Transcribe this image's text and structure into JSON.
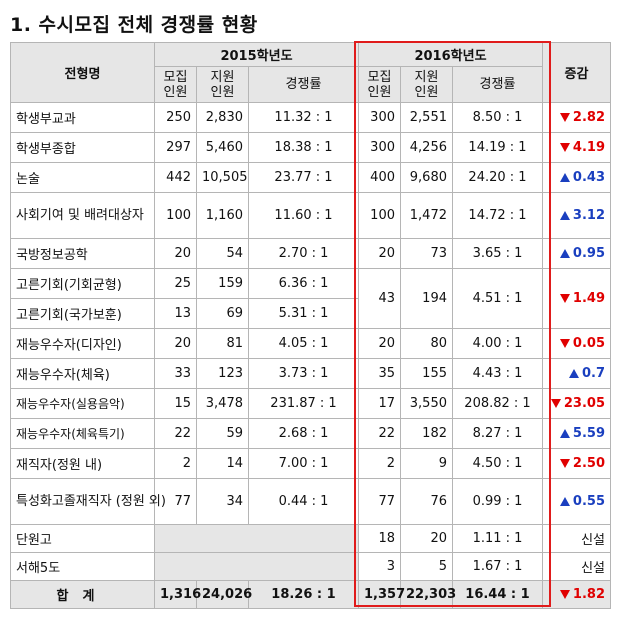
{
  "title": "1. 수시모집 전체 경쟁률 현황",
  "header": {
    "type": "전형명",
    "year2015": "2015학년도",
    "year2016": "2016학년도",
    "recruit": "모집",
    "recruit2": "인원",
    "apply": "지원",
    "apply2": "인원",
    "rate": "경쟁률",
    "change": "증감"
  },
  "rows": [
    {
      "name": "학생부교과",
      "r15": "250",
      "a15": "2,830",
      "c15": "11.32 : 1",
      "r16": "300",
      "a16": "2,551",
      "c16": "8.50 : 1",
      "chg": "2.82",
      "dir": "down"
    },
    {
      "name": "학생부종합",
      "r15": "297",
      "a15": "5,460",
      "c15": "18.38 : 1",
      "r16": "300",
      "a16": "4,256",
      "c16": "14.19 : 1",
      "chg": "4.19",
      "dir": "down"
    },
    {
      "name": "논술",
      "r15": "442",
      "a15": "10,505",
      "c15": "23.77 : 1",
      "r16": "400",
      "a16": "9,680",
      "c16": "24.20 : 1",
      "chg": "0.43",
      "dir": "up"
    },
    {
      "name": "사회기여 및 배려대상자",
      "r15": "100",
      "a15": "1,160",
      "c15": "11.60 : 1",
      "r16": "100",
      "a16": "1,472",
      "c16": "14.72 : 1",
      "chg": "3.12",
      "dir": "up"
    },
    {
      "name": "국방정보공학",
      "r15": "20",
      "a15": "54",
      "c15": "2.70 : 1",
      "r16": "20",
      "a16": "73",
      "c16": "3.65 : 1",
      "chg": "0.95",
      "dir": "up"
    },
    {
      "name": "고른기회(기회균형)",
      "r15": "25",
      "a15": "159",
      "c15": "6.36 : 1"
    },
    {
      "name": "고른기회(국가보훈)",
      "r15": "13",
      "a15": "69",
      "c15": "5.31 : 1"
    },
    {
      "name": "재능우수자(디자인)",
      "r15": "20",
      "a15": "81",
      "c15": "4.05 : 1",
      "r16": "20",
      "a16": "80",
      "c16": "4.00 : 1",
      "chg": "0.05",
      "dir": "down"
    },
    {
      "name": "재능우수자(체육)",
      "r15": "33",
      "a15": "123",
      "c15": "3.73 : 1",
      "r16": "35",
      "a16": "155",
      "c16": "4.43 : 1",
      "chg": "0.7",
      "dir": "up"
    },
    {
      "name": "재능우수자(실용음악)",
      "r15": "15",
      "a15": "3,478",
      "c15": "231.87 : 1",
      "r16": "17",
      "a16": "3,550",
      "c16": "208.82 : 1",
      "chg": "23.05",
      "dir": "down"
    },
    {
      "name": "재능우수자(체육특기)",
      "r15": "22",
      "a15": "59",
      "c15": "2.68 : 1",
      "r16": "22",
      "a16": "182",
      "c16": "8.27 : 1",
      "chg": "5.59",
      "dir": "up"
    },
    {
      "name": "재직자(정원 내)",
      "r15": "2",
      "a15": "14",
      "c15": "7.00 : 1",
      "r16": "2",
      "a16": "9",
      "c16": "4.50 : 1",
      "chg": "2.50",
      "dir": "down"
    },
    {
      "name": "특성화고졸재직자 (정원 외)",
      "r15": "77",
      "a15": "34",
      "c15": "0.44 : 1",
      "r16": "77",
      "a16": "76",
      "c16": "0.99 : 1",
      "chg": "0.55",
      "dir": "up"
    },
    {
      "name": "단원고",
      "r16": "18",
      "a16": "20",
      "c16": "1.11 : 1",
      "chg": "신설"
    },
    {
      "name": "서해5도",
      "r16": "3",
      "a16": "5",
      "c16": "1.67 : 1",
      "chg": "신설"
    }
  ],
  "merged": {
    "r16": "43",
    "a16": "194",
    "c16": "4.51 : 1",
    "chg": "1.49",
    "dir": "down"
  },
  "total": {
    "label": "합계",
    "r15": "1,316",
    "a15": "24,026",
    "c15": "18.26 : 1",
    "r16": "1,357",
    "a16": "22,303",
    "c16": "16.44 : 1",
    "chg": "1.82",
    "dir": "down"
  },
  "colors": {
    "down": "#e00000",
    "up": "#1a3fbf",
    "highlight_box": "#e01b1b",
    "header_bg": "#e6e6e6"
  }
}
